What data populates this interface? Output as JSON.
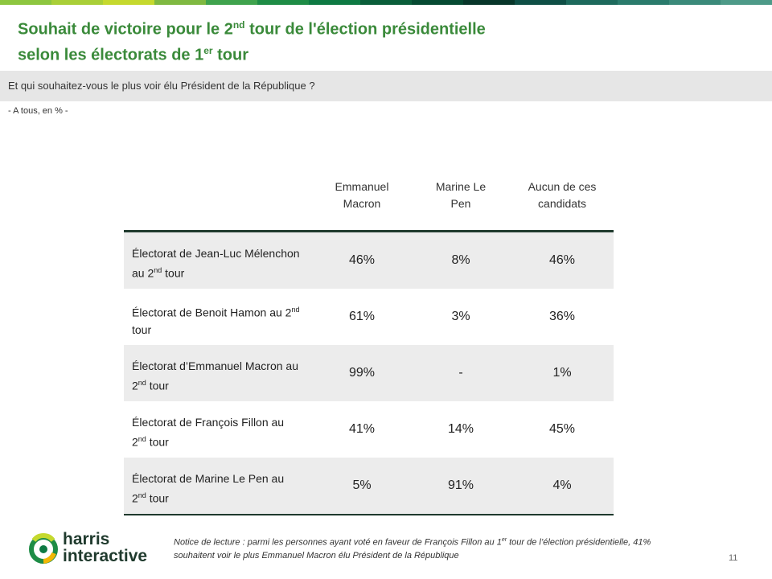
{
  "colors": {
    "title": "#3a8a3a",
    "dark_line": "#1f3a2d",
    "row_shade": "#ececec",
    "question_bar": "#e6e6e6",
    "top_bar": [
      "#8dc63f",
      "#a9cf38",
      "#c5d92e",
      "#7fb941",
      "#3fa34d",
      "#1e8c46",
      "#0e7a43",
      "#0a5e3a",
      "#064a32",
      "#08362a",
      "#0f4f46",
      "#1d6a5c",
      "#2a7b6c",
      "#3b8a7a",
      "#4d9a88"
    ]
  },
  "header": {
    "title_line1_pre": "Souhait de victoire pour le 2",
    "title_line1_sup": "nd",
    "title_line1_post": " tour de l'élection présidentielle",
    "title_line2_pre": "selon les électorats de 1",
    "title_line2_sup": "er",
    "title_line2_post": " tour"
  },
  "question": "Et qui souhaitez-vous le plus voir élu Président de la République ?",
  "base": "- A tous, en % -",
  "columns": [
    {
      "line1": "Emmanuel",
      "line2": "Macron"
    },
    {
      "line1": "Marine  Le",
      "line2": "Pen"
    },
    {
      "line1": "Aucun  de ces",
      "line2": "candidats"
    }
  ],
  "rows": [
    {
      "label_pre": "Électorat  de Jean-Luc Mélenchon  au 2",
      "sup": "nd",
      "label_post": " tour",
      "values": [
        "46%",
        "8%",
        "46%"
      ]
    },
    {
      "label_pre": "Électorat  de Benoit  Hamon au 2",
      "sup": "nd",
      "label_post": " tour",
      "values": [
        "61%",
        "3%",
        "36%"
      ]
    },
    {
      "label_pre": "Électorat  d’Emmanuel Macron  au 2",
      "sup": "nd",
      "label_post": " tour",
      "values": [
        "99%",
        "-",
        "1%"
      ]
    },
    {
      "label_pre": "Électorat  de François  Fillon au 2",
      "sup": "nd",
      "label_post": " tour",
      "values": [
        "41%",
        "14%",
        "45%"
      ]
    },
    {
      "label_pre": "Électorat  de Marine  Le Pen au 2",
      "sup": "nd",
      "label_post": " tour",
      "values": [
        "5%",
        "91%",
        "4%"
      ]
    }
  ],
  "logo": {
    "line1": "harris",
    "line2": "interactive"
  },
  "note": {
    "pre": "Notice de lecture : parmi les personnes ayant voté en faveur de François Fillon au 1",
    "sup": "er",
    "post": " tour de l’élection présidentielle, 41% souhaitent voir le plus Emmanuel Macron élu Président de la République"
  },
  "page_number": "11"
}
